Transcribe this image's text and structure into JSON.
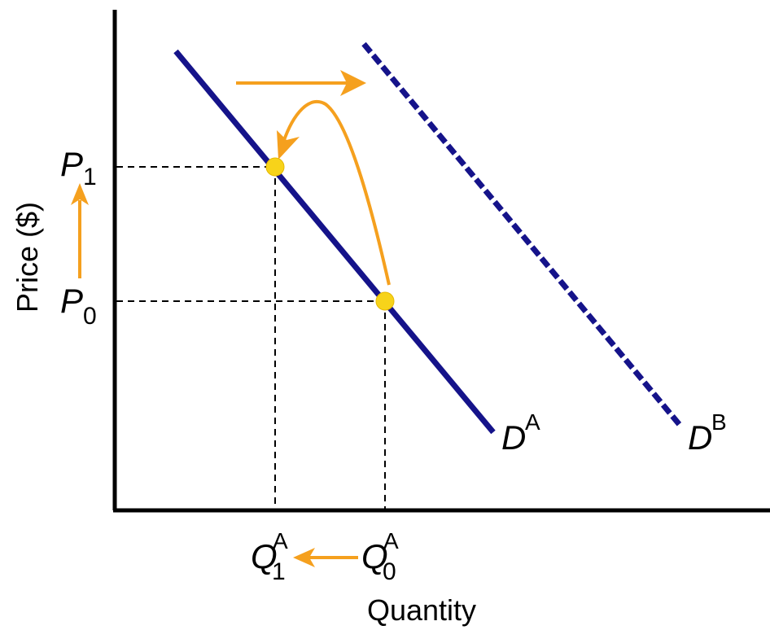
{
  "axes": {
    "y_label": "Price ($)",
    "x_label": "Quantity"
  },
  "curves": {
    "demand_a": {
      "letter": "D",
      "sup": "A",
      "style": "solid"
    },
    "demand_b": {
      "letter": "D",
      "sup": "B",
      "style": "dashed"
    }
  },
  "prices": {
    "p1": {
      "letter": "P",
      "sub": "1"
    },
    "p0": {
      "letter": "P",
      "sub": "0"
    }
  },
  "quantities": {
    "q1": {
      "letter": "Q",
      "sup": "A",
      "sub": "1"
    },
    "q0": {
      "letter": "Q",
      "sup": "A",
      "sub": "0"
    }
  },
  "colors": {
    "axis": "#000000",
    "demand": "#15138a",
    "arrow": "#f5a01e",
    "point": "#f7d31a",
    "guide": "#000000"
  }
}
